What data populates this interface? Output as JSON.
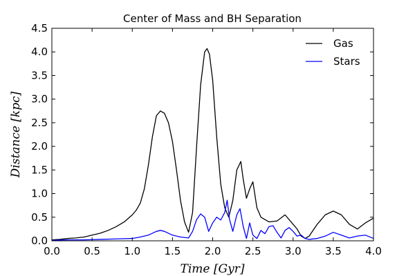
{
  "chart_data": {
    "type": "line",
    "title": "Center of Mass and BH Separation",
    "xlabel": "Time [Gyr]",
    "ylabel": "Distance [kpc]",
    "xlim": [
      0.0,
      4.0
    ],
    "ylim": [
      0.0,
      4.5
    ],
    "xticks": [
      "0.0",
      "0.5",
      "1.0",
      "1.5",
      "2.0",
      "2.5",
      "3.0",
      "3.5",
      "4.0"
    ],
    "yticks": [
      "0.0",
      "0.5",
      "1.0",
      "1.5",
      "2.0",
      "2.5",
      "3.0",
      "3.5",
      "4.0",
      "4.5"
    ],
    "grid": false,
    "legend_position": "top-right",
    "series": [
      {
        "name": "Gas",
        "color": "#000000",
        "x": [
          0.0,
          0.1,
          0.2,
          0.3,
          0.4,
          0.5,
          0.6,
          0.7,
          0.8,
          0.9,
          1.0,
          1.05,
          1.1,
          1.15,
          1.2,
          1.25,
          1.3,
          1.35,
          1.4,
          1.45,
          1.5,
          1.55,
          1.6,
          1.65,
          1.7,
          1.75,
          1.8,
          1.85,
          1.9,
          1.93,
          1.96,
          2.0,
          2.05,
          2.1,
          2.15,
          2.2,
          2.25,
          2.3,
          2.35,
          2.38,
          2.42,
          2.46,
          2.5,
          2.55,
          2.6,
          2.65,
          2.7,
          2.8,
          2.9,
          3.0,
          3.05,
          3.1,
          3.15,
          3.2,
          3.3,
          3.4,
          3.5,
          3.6,
          3.7,
          3.8,
          3.9,
          4.0
        ],
        "y": [
          0.02,
          0.03,
          0.05,
          0.06,
          0.08,
          0.12,
          0.16,
          0.22,
          0.3,
          0.4,
          0.55,
          0.65,
          0.8,
          1.1,
          1.6,
          2.2,
          2.65,
          2.75,
          2.7,
          2.5,
          2.1,
          1.5,
          0.85,
          0.4,
          0.18,
          0.6,
          2.0,
          3.3,
          4.0,
          4.07,
          3.95,
          3.4,
          2.2,
          1.2,
          0.7,
          0.5,
          0.85,
          1.5,
          1.68,
          1.3,
          0.9,
          1.1,
          1.25,
          0.7,
          0.5,
          0.45,
          0.4,
          0.42,
          0.55,
          0.35,
          0.25,
          0.1,
          0.05,
          0.1,
          0.35,
          0.55,
          0.63,
          0.55,
          0.35,
          0.25,
          0.38,
          0.48
        ]
      },
      {
        "name": "Stars",
        "color": "#0000ff",
        "x": [
          0.0,
          0.2,
          0.4,
          0.6,
          0.8,
          1.0,
          1.1,
          1.2,
          1.3,
          1.35,
          1.4,
          1.5,
          1.6,
          1.7,
          1.75,
          1.8,
          1.85,
          1.9,
          1.95,
          2.0,
          2.05,
          2.1,
          2.15,
          2.18,
          2.21,
          2.25,
          2.3,
          2.34,
          2.38,
          2.42,
          2.46,
          2.5,
          2.55,
          2.6,
          2.65,
          2.7,
          2.75,
          2.8,
          2.85,
          2.9,
          2.95,
          3.0,
          3.05,
          3.1,
          3.15,
          3.2,
          3.3,
          3.4,
          3.5,
          3.6,
          3.7,
          3.8,
          3.9,
          4.0
        ],
        "y": [
          0.01,
          0.02,
          0.02,
          0.03,
          0.04,
          0.05,
          0.08,
          0.12,
          0.2,
          0.22,
          0.2,
          0.12,
          0.08,
          0.06,
          0.2,
          0.45,
          0.57,
          0.5,
          0.2,
          0.38,
          0.5,
          0.44,
          0.6,
          0.86,
          0.45,
          0.2,
          0.55,
          0.68,
          0.3,
          0.05,
          0.38,
          0.12,
          0.05,
          0.22,
          0.15,
          0.3,
          0.32,
          0.18,
          0.06,
          0.22,
          0.28,
          0.2,
          0.1,
          0.12,
          0.05,
          0.03,
          0.05,
          0.1,
          0.18,
          0.12,
          0.06,
          0.1,
          0.12,
          0.05
        ]
      }
    ]
  }
}
